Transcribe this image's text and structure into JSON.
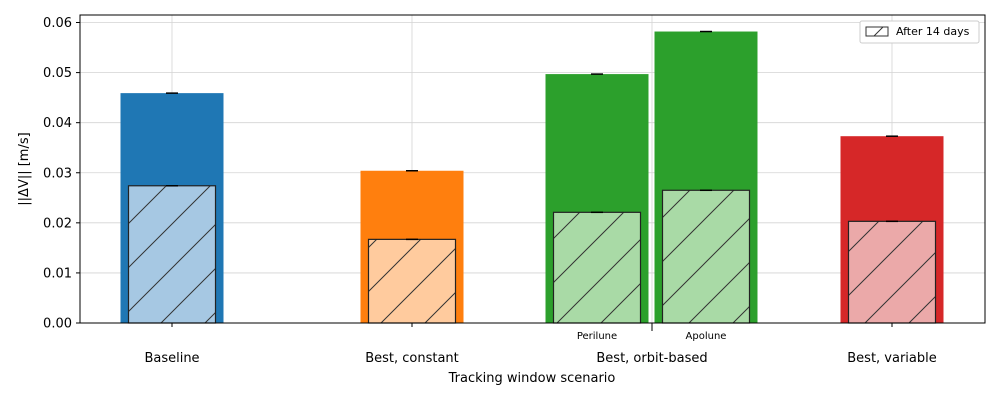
{
  "chart_data": {
    "type": "bar",
    "xlabel": "Tracking window scenario",
    "ylabel": "||ΔV|| [m/s]",
    "ylim": [
      0,
      0.0615
    ],
    "yticks": [
      0.0,
      0.01,
      0.02,
      0.03,
      0.04,
      0.05,
      0.06
    ],
    "ytick_labels": [
      "0.00",
      "0.01",
      "0.02",
      "0.03",
      "0.04",
      "0.05",
      "0.06"
    ],
    "grid": true,
    "legend": {
      "position": "top-right",
      "entries": [
        {
          "label": "After 14 days",
          "style": "hatched"
        }
      ]
    },
    "categories": [
      "Baseline",
      "Best, constant",
      "Best, orbit-based",
      "Best, variable"
    ],
    "bars": [
      {
        "category": "Baseline",
        "sublabel": "",
        "total": 0.0459,
        "after_14_days": 0.0274,
        "color": "#1f77b4",
        "light_color": "#a6c8e3"
      },
      {
        "category": "Best, constant",
        "sublabel": "",
        "total": 0.0304,
        "after_14_days": 0.0167,
        "color": "#ff7f0e",
        "light_color": "#ffcb9e"
      },
      {
        "category": "Best, orbit-based",
        "sublabel": "Perilune",
        "total": 0.0497,
        "after_14_days": 0.0221,
        "color": "#2ca02c",
        "light_color": "#a9daa6"
      },
      {
        "category": "Best, orbit-based",
        "sublabel": "Apolune",
        "total": 0.0582,
        "after_14_days": 0.0265,
        "color": "#2ca02c",
        "light_color": "#a9daa6"
      },
      {
        "category": "Best, variable",
        "sublabel": "",
        "total": 0.0373,
        "after_14_days": 0.0203,
        "color": "#d62728",
        "light_color": "#eba9a9"
      }
    ]
  }
}
